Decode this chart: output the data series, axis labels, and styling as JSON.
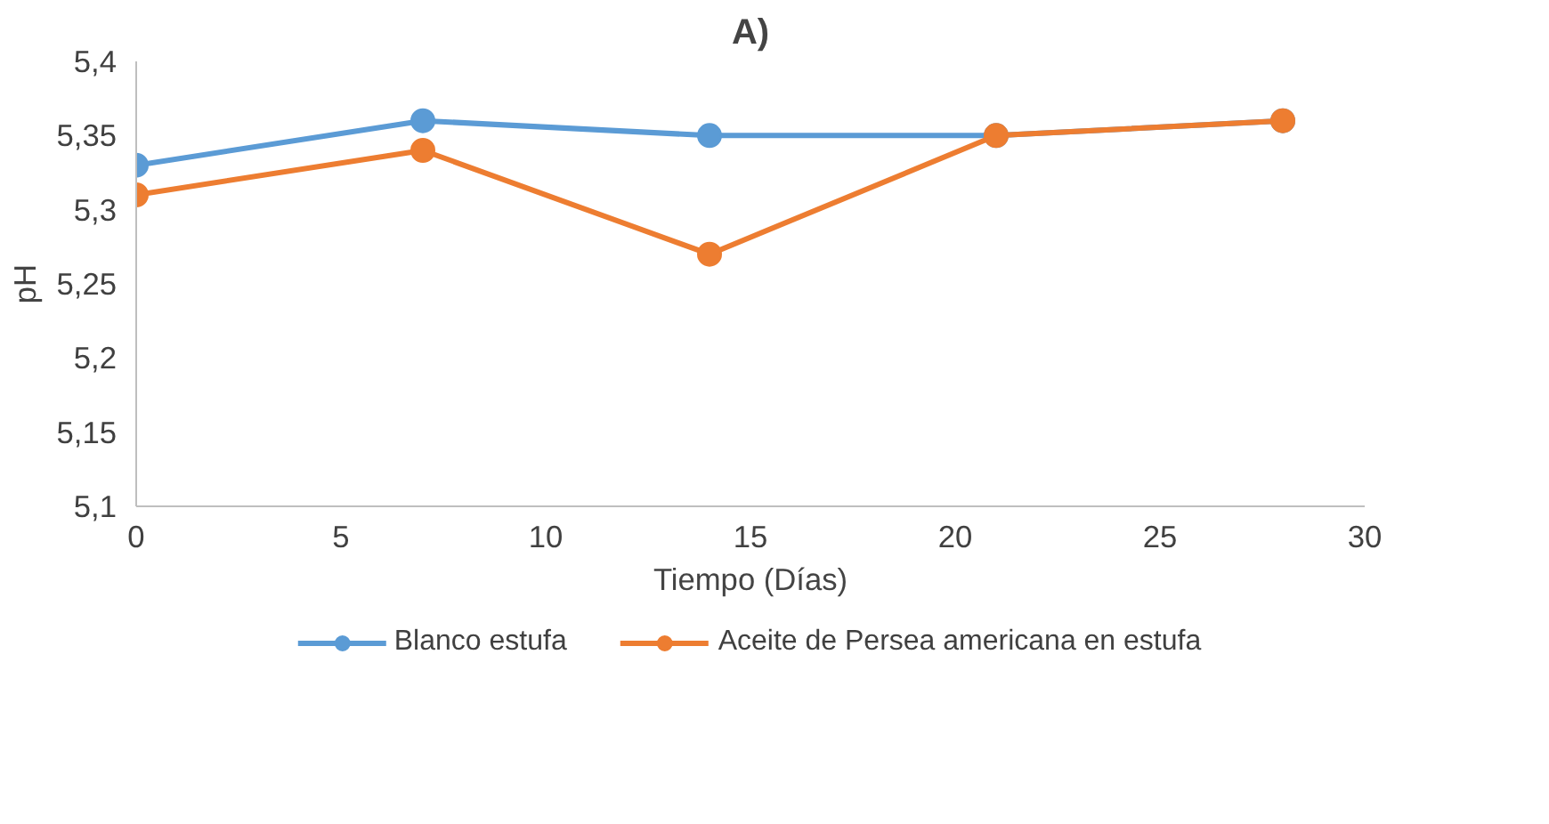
{
  "chart_data": {
    "type": "line",
    "title": "A)",
    "xlabel": "Tiempo (Días)",
    "ylabel": "pH",
    "x": [
      0,
      7,
      14,
      21,
      28
    ],
    "series": [
      {
        "name": "Blanco estufa",
        "color": "#5b9bd5",
        "values": [
          5.33,
          5.36,
          5.35,
          5.35,
          5.36
        ]
      },
      {
        "name": "Aceite de Persea americana en estufa",
        "color": "#ed7d31",
        "values": [
          5.31,
          5.34,
          5.27,
          5.35,
          5.36
        ]
      }
    ],
    "xlim": [
      0,
      30
    ],
    "xticks": [
      0,
      5,
      10,
      15,
      20,
      25,
      30
    ],
    "ylim": [
      5.1,
      5.4
    ],
    "yticks": [
      {
        "value": 5.1,
        "label": "5,1"
      },
      {
        "value": 5.15,
        "label": "5,15"
      },
      {
        "value": 5.2,
        "label": "5,2"
      },
      {
        "value": 5.25,
        "label": "5,25"
      },
      {
        "value": 5.3,
        "label": "5,3"
      },
      {
        "value": 5.35,
        "label": "5,35"
      },
      {
        "value": 5.4,
        "label": "5,4"
      }
    ],
    "grid": false,
    "legend": "bottom",
    "marker": "circle",
    "line_style": "solid"
  }
}
